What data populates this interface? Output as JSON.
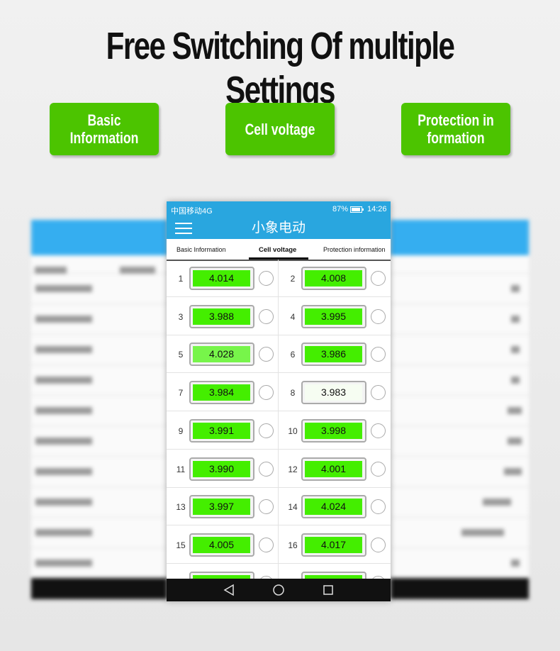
{
  "header": {
    "title": "Free Switching Of multiple Settings"
  },
  "buttons": [
    "Basic Information",
    "Cell voltage",
    "Protection in formation"
  ],
  "phone": {
    "status": {
      "carrier": "中国移动4G",
      "battery": "87%",
      "time": "14:26"
    },
    "app_title": "小象电动",
    "tabs": [
      "Basic Information",
      "Cell voltage",
      "Protection information"
    ],
    "active_tab": 1,
    "cells": [
      {
        "index": 1,
        "voltage": "4.014",
        "color": "#44ee00"
      },
      {
        "index": 2,
        "voltage": "4.008",
        "color": "#44ee00"
      },
      {
        "index": 3,
        "voltage": "3.988",
        "color": "#44ee00"
      },
      {
        "index": 4,
        "voltage": "3.995",
        "color": "#44ee00"
      },
      {
        "index": 5,
        "voltage": "4.028",
        "color": "#77f54a"
      },
      {
        "index": 6,
        "voltage": "3.986",
        "color": "#44ee00"
      },
      {
        "index": 7,
        "voltage": "3.984",
        "color": "#44ee00"
      },
      {
        "index": 8,
        "voltage": "3.983",
        "color": "#f6fdf2"
      },
      {
        "index": 9,
        "voltage": "3.991",
        "color": "#44ee00"
      },
      {
        "index": 10,
        "voltage": "3.998",
        "color": "#44ee00"
      },
      {
        "index": 11,
        "voltage": "3.990",
        "color": "#44ee00"
      },
      {
        "index": 12,
        "voltage": "4.001",
        "color": "#44ee00"
      },
      {
        "index": 13,
        "voltage": "3.997",
        "color": "#44ee00"
      },
      {
        "index": 14,
        "voltage": "4.024",
        "color": "#44ee00"
      },
      {
        "index": 15,
        "voltage": "4.005",
        "color": "#44ee00"
      },
      {
        "index": 16,
        "voltage": "4.017",
        "color": "#44ee00"
      }
    ]
  }
}
